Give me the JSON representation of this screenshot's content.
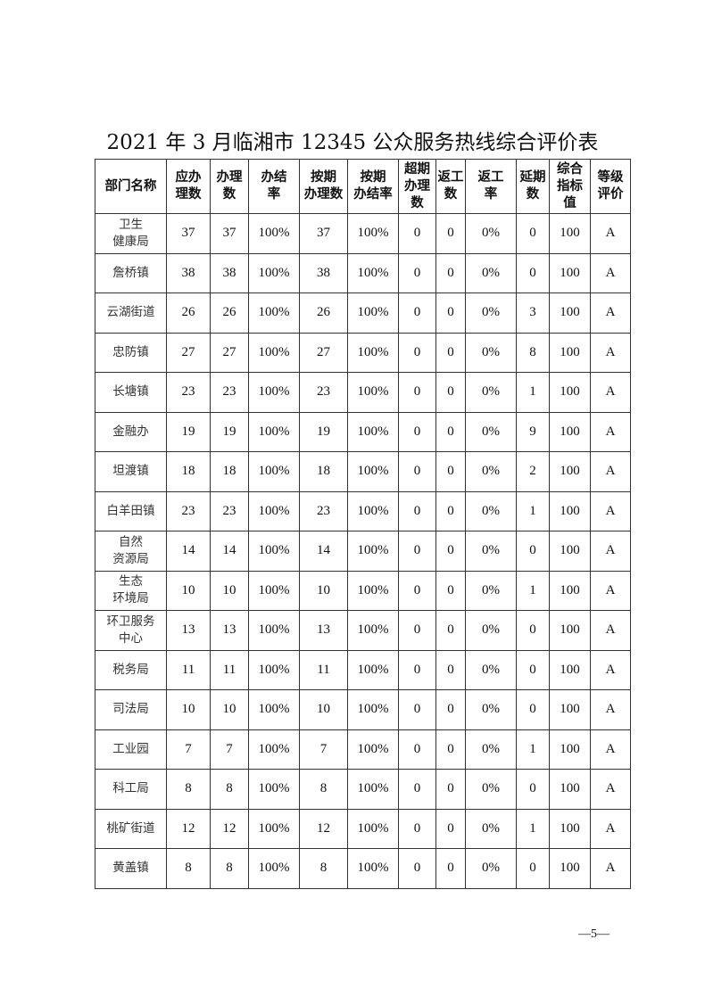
{
  "document": {
    "title": "2021 年 3 月临湘市 12345 公众服务热线综合评价表",
    "page_number": "—5—"
  },
  "table": {
    "headers": [
      "部门名称",
      "应办\n理数",
      "办理\n数",
      "办结\n率",
      "按期\n办理数",
      "按期\n办结率",
      "超期\n办理\n数",
      "返工\n数",
      "返工\n率",
      "延期\n数",
      "综合\n指标\n值",
      "等级\n评价"
    ],
    "rows": [
      [
        "卫生\n健康局",
        "37",
        "37",
        "100%",
        "37",
        "100%",
        "0",
        "0",
        "0%",
        "0",
        "100",
        "A"
      ],
      [
        "詹桥镇",
        "38",
        "38",
        "100%",
        "38",
        "100%",
        "0",
        "0",
        "0%",
        "0",
        "100",
        "A"
      ],
      [
        "云湖街道",
        "26",
        "26",
        "100%",
        "26",
        "100%",
        "0",
        "0",
        "0%",
        "3",
        "100",
        "A"
      ],
      [
        "忠防镇",
        "27",
        "27",
        "100%",
        "27",
        "100%",
        "0",
        "0",
        "0%",
        "8",
        "100",
        "A"
      ],
      [
        "长塘镇",
        "23",
        "23",
        "100%",
        "23",
        "100%",
        "0",
        "0",
        "0%",
        "1",
        "100",
        "A"
      ],
      [
        "金融办",
        "19",
        "19",
        "100%",
        "19",
        "100%",
        "0",
        "0",
        "0%",
        "9",
        "100",
        "A"
      ],
      [
        "坦渡镇",
        "18",
        "18",
        "100%",
        "18",
        "100%",
        "0",
        "0",
        "0%",
        "2",
        "100",
        "A"
      ],
      [
        "白羊田镇",
        "23",
        "23",
        "100%",
        "23",
        "100%",
        "0",
        "0",
        "0%",
        "1",
        "100",
        "A"
      ],
      [
        "自然\n资源局",
        "14",
        "14",
        "100%",
        "14",
        "100%",
        "0",
        "0",
        "0%",
        "0",
        "100",
        "A"
      ],
      [
        "生态\n环境局",
        "10",
        "10",
        "100%",
        "10",
        "100%",
        "0",
        "0",
        "0%",
        "1",
        "100",
        "A"
      ],
      [
        "环卫服务\n中心",
        "13",
        "13",
        "100%",
        "13",
        "100%",
        "0",
        "0",
        "0%",
        "0",
        "100",
        "A"
      ],
      [
        "税务局",
        "11",
        "11",
        "100%",
        "11",
        "100%",
        "0",
        "0",
        "0%",
        "0",
        "100",
        "A"
      ],
      [
        "司法局",
        "10",
        "10",
        "100%",
        "10",
        "100%",
        "0",
        "0",
        "0%",
        "0",
        "100",
        "A"
      ],
      [
        "工业园",
        "7",
        "7",
        "100%",
        "7",
        "100%",
        "0",
        "0",
        "0%",
        "1",
        "100",
        "A"
      ],
      [
        "科工局",
        "8",
        "8",
        "100%",
        "8",
        "100%",
        "0",
        "0",
        "0%",
        "0",
        "100",
        "A"
      ],
      [
        "桃矿街道",
        "12",
        "12",
        "100%",
        "12",
        "100%",
        "0",
        "0",
        "0%",
        "1",
        "100",
        "A"
      ],
      [
        "黄盖镇",
        "8",
        "8",
        "100%",
        "8",
        "100%",
        "0",
        "0",
        "0%",
        "0",
        "100",
        "A"
      ]
    ]
  }
}
